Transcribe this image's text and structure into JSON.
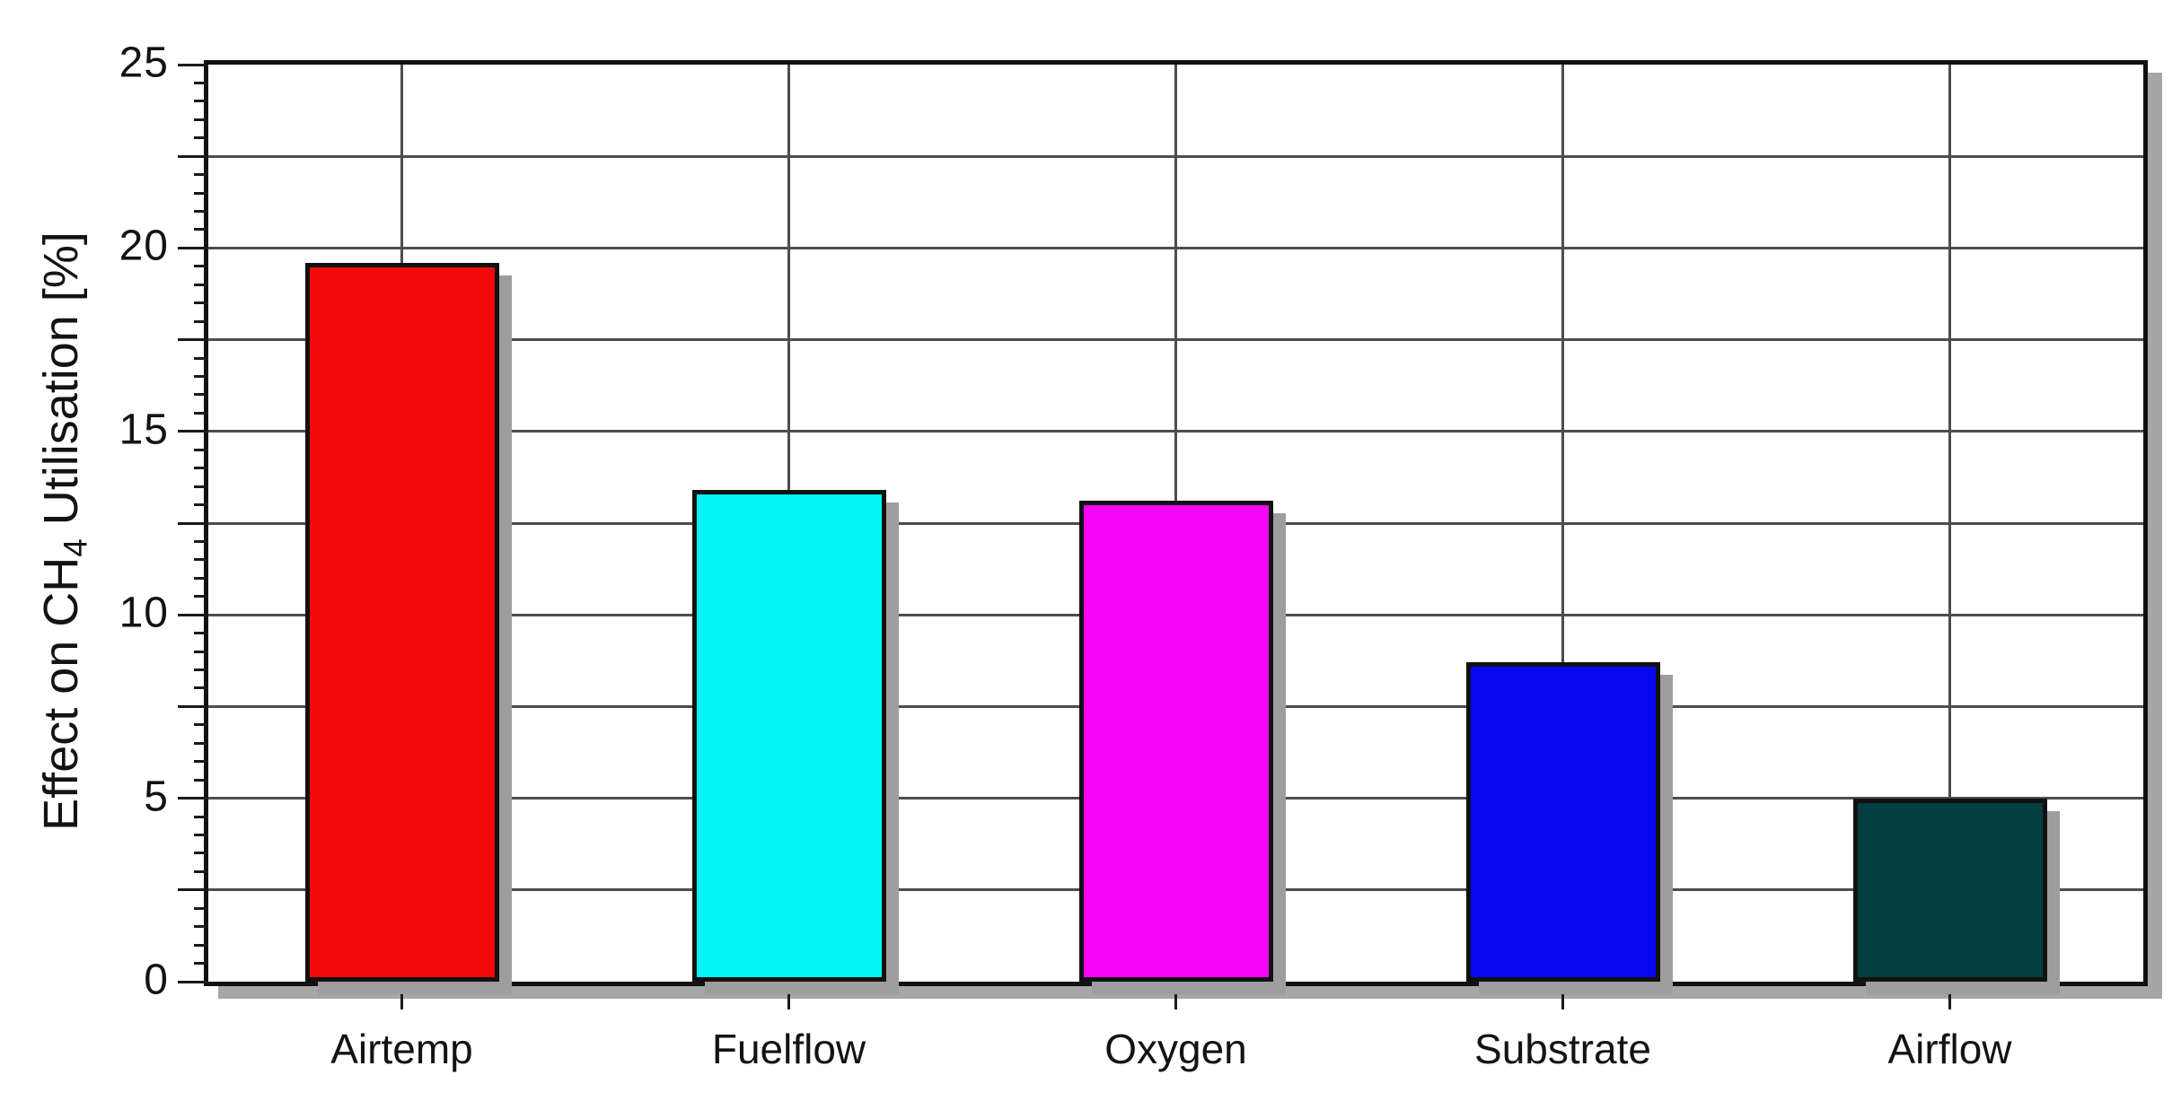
{
  "chart_data": {
    "type": "bar",
    "title": "",
    "categories": [
      "Airtemp",
      "Fuelflow",
      "Oxygen",
      "Substrate",
      "Airflow"
    ],
    "values": [
      19.6,
      13.4,
      13.1,
      8.7,
      5.0
    ],
    "bar_colors": [
      "#f20a0a",
      "#00f5f5",
      "#f707f7",
      "#0707ef",
      "#043e40"
    ],
    "ylabel_plain": "Effect on CH4 Utilisation [%]",
    "ylabel_parts": {
      "pre": "Effect on CH",
      "sub": "4",
      "post": " Utilisation [%]"
    },
    "xlabel": "",
    "ylim": [
      0,
      25
    ],
    "ytick_values": [
      0,
      5,
      10,
      15,
      20,
      25
    ],
    "ytick_labels": [
      "0",
      "5",
      "10",
      "15",
      "20",
      "25"
    ],
    "grid_step": 2.5,
    "minor_tick_step": 0.5,
    "grid": "on",
    "legend": "none"
  },
  "style": {
    "background": "#ffffff",
    "frame_color": "#111111",
    "grid_color": "#4d4d4d",
    "tick_color": "#1a1a1a",
    "text_color": "#131313",
    "frame_shadow_color": "#a6a6a6",
    "bar_border_color": "#111111",
    "bar_shadow_color": "#9d9d9d"
  }
}
